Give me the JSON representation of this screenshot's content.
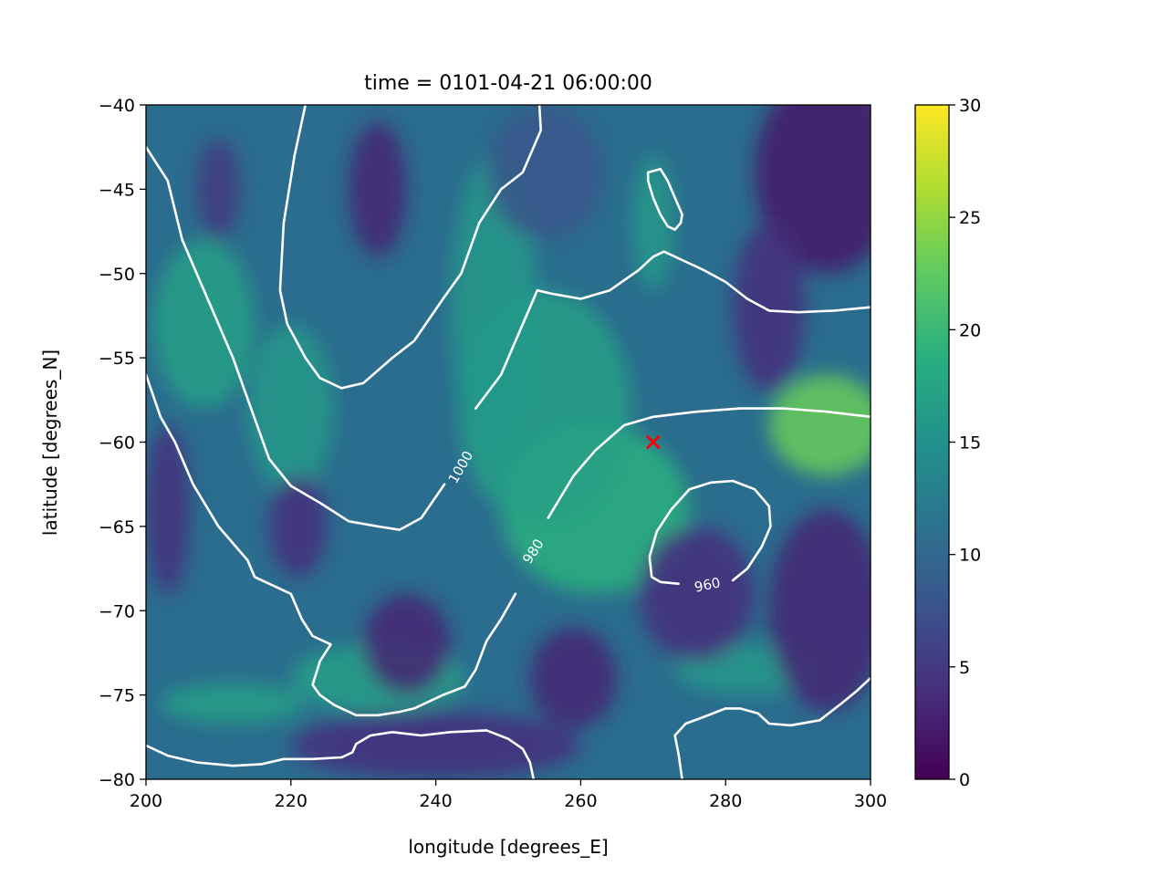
{
  "chart_data": {
    "type": "heatmap",
    "title": "time = 0101-04-21 06:00:00",
    "xlabel": "longitude [degrees_E]",
    "ylabel": "latitude [degrees_N]",
    "xlim": [
      200,
      300
    ],
    "ylim": [
      -80,
      -40
    ],
    "xticks": [
      200,
      220,
      240,
      260,
      280,
      300
    ],
    "xtick_labels": [
      "200",
      "220",
      "240",
      "260",
      "280",
      "300"
    ],
    "yticks": [
      -80,
      -75,
      -70,
      -65,
      -60,
      -55,
      -50,
      -45,
      -40
    ],
    "ytick_labels": [
      "−80",
      "−75",
      "−70",
      "−65",
      "−60",
      "−55",
      "−50",
      "−45",
      "−40"
    ],
    "colorbar": {
      "colormap": "viridis",
      "range": [
        0,
        30
      ],
      "ticks": [
        0,
        5,
        10,
        15,
        20,
        25,
        30
      ],
      "tick_labels": [
        "0",
        "5",
        "10",
        "15",
        "20",
        "25",
        "30"
      ]
    },
    "field_blobs": [
      {
        "lon": 294,
        "lat": -59,
        "value": 23,
        "rlon": 8,
        "rlat": 3
      },
      {
        "lon": 262,
        "lat": -64,
        "value": 19,
        "rlon": 13,
        "rlat": 5
      },
      {
        "lon": 255,
        "lat": -58,
        "value": 17,
        "rlon": 12,
        "rlat": 7
      },
      {
        "lon": 248,
        "lat": -52,
        "value": 16,
        "rlon": 6,
        "rlat": 9
      },
      {
        "lon": 270,
        "lat": -47,
        "value": 16,
        "rlon": 3,
        "rlat": 4
      },
      {
        "lon": 208,
        "lat": -53,
        "value": 17,
        "rlon": 7,
        "rlat": 5
      },
      {
        "lon": 220,
        "lat": -58,
        "value": 16,
        "rlon": 6,
        "rlat": 5
      },
      {
        "lon": 232,
        "lat": -74,
        "value": 17,
        "rlon": 12,
        "rlat": 2
      },
      {
        "lon": 212,
        "lat": -75.5,
        "value": 17,
        "rlon": 10,
        "rlat": 1.2
      },
      {
        "lon": 283,
        "lat": -73.5,
        "value": 16,
        "rlon": 10,
        "rlat": 1.5
      },
      {
        "lon": 232,
        "lat": -45,
        "value": 3,
        "rlon": 4,
        "rlat": 4
      },
      {
        "lon": 210,
        "lat": -45,
        "value": 5,
        "rlon": 3,
        "rlat": 3
      },
      {
        "lon": 294,
        "lat": -44,
        "value": 2,
        "rlon": 10,
        "rlat": 6
      },
      {
        "lon": 286,
        "lat": -52,
        "value": 4,
        "rlon": 5,
        "rlat": 5
      },
      {
        "lon": 294,
        "lat": -70,
        "value": 3,
        "rlon": 8,
        "rlat": 6
      },
      {
        "lon": 276,
        "lat": -69,
        "value": 4,
        "rlon": 8,
        "rlat": 4
      },
      {
        "lon": 236,
        "lat": -72,
        "value": 3,
        "rlon": 6,
        "rlat": 3
      },
      {
        "lon": 259,
        "lat": -74,
        "value": 3,
        "rlon": 6,
        "rlat": 3
      },
      {
        "lon": 221,
        "lat": -65,
        "value": 4,
        "rlon": 4,
        "rlat": 3
      },
      {
        "lon": 203,
        "lat": -64,
        "value": 4,
        "rlon": 3,
        "rlat": 5
      },
      {
        "lon": 255,
        "lat": -44,
        "value": 8,
        "rlon": 8,
        "rlat": 4
      },
      {
        "lon": 240,
        "lat": -78,
        "value": 4,
        "rlon": 20,
        "rlat": 2
      }
    ],
    "contours": [
      {
        "level": 1000,
        "label": "1000",
        "label_at": [
          243.5,
          -61.5
        ],
        "label_angle": -60,
        "points": [
          [
            245.5,
            -58
          ],
          [
            249,
            -56
          ],
          [
            252,
            -53
          ],
          [
            254,
            -51
          ],
          [
            256,
            -51.2
          ],
          [
            260,
            -51.5
          ],
          [
            264,
            -51
          ],
          [
            268,
            -49.8
          ],
          [
            270,
            -49
          ],
          [
            271.5,
            -48.7
          ],
          [
            274,
            -49.2
          ],
          [
            277,
            -49.8
          ],
          [
            280,
            -50.5
          ],
          [
            283,
            -51.5
          ],
          [
            286,
            -52.2
          ],
          [
            290,
            -52.3
          ],
          [
            295,
            -52.2
          ],
          [
            300,
            -52
          ]
        ]
      },
      {
        "level": 1000,
        "label": "",
        "points": [
          [
            241.2,
            -62.5
          ],
          [
            238,
            -64.5
          ],
          [
            235,
            -65.2
          ],
          [
            232,
            -65
          ],
          [
            228,
            -64.7
          ],
          [
            224,
            -63.6
          ],
          [
            220,
            -62.6
          ],
          [
            217,
            -61
          ],
          [
            214.5,
            -58
          ],
          [
            212,
            -55
          ],
          [
            209,
            -52
          ],
          [
            205,
            -48
          ],
          [
            203,
            -44.5
          ],
          [
            200,
            -42.5
          ]
        ]
      },
      {
        "level": 1000,
        "label": "",
        "points": [
          [
            222,
            -40
          ],
          [
            220.5,
            -43
          ],
          [
            219,
            -47
          ],
          [
            218.5,
            -51
          ],
          [
            219.5,
            -53
          ],
          [
            222,
            -55
          ],
          [
            224,
            -56.2
          ],
          [
            227,
            -56.8
          ],
          [
            230,
            -56.5
          ],
          [
            234,
            -55
          ],
          [
            237,
            -54
          ],
          [
            241,
            -51.5
          ],
          [
            243.5,
            -50
          ],
          [
            246,
            -47
          ],
          [
            249,
            -45
          ],
          [
            252,
            -44
          ],
          [
            254.5,
            -41.5
          ],
          [
            254.3,
            -40
          ]
        ]
      },
      {
        "level": 1000,
        "label": "",
        "points": [
          [
            269.3,
            -44
          ],
          [
            271,
            -43.8
          ],
          [
            272,
            -44.5
          ],
          [
            273,
            -45.5
          ],
          [
            274,
            -46.5
          ],
          [
            273.8,
            -47
          ],
          [
            273,
            -47.4
          ],
          [
            272,
            -47.2
          ],
          [
            271,
            -46.5
          ],
          [
            270,
            -45.5
          ],
          [
            269.3,
            -44.5
          ],
          [
            269.3,
            -44
          ]
        ]
      },
      {
        "level": 980,
        "label": "980",
        "label_at": [
          253.5,
          -66.5
        ],
        "label_angle": -57,
        "points": [
          [
            251,
            -69
          ],
          [
            249,
            -70.5
          ],
          [
            247,
            -71.8
          ],
          [
            245.5,
            -73.5
          ],
          [
            244,
            -74.5
          ],
          [
            241,
            -75
          ],
          [
            237,
            -75.8
          ],
          [
            235,
            -76
          ],
          [
            232,
            -76.2
          ],
          [
            229,
            -76.2
          ],
          [
            226,
            -75.6
          ],
          [
            224,
            -75
          ],
          [
            223,
            -74.4
          ],
          [
            224,
            -73
          ],
          [
            225.5,
            -72
          ],
          [
            223,
            -71.5
          ],
          [
            221.5,
            -70.5
          ],
          [
            220,
            -69
          ],
          [
            215,
            -68
          ],
          [
            214,
            -67
          ],
          [
            210,
            -65
          ],
          [
            206.5,
            -62.5
          ],
          [
            204,
            -60
          ],
          [
            202,
            -58.5
          ],
          [
            200,
            -56
          ]
        ]
      },
      {
        "level": 980,
        "label": "",
        "points": [
          [
            255.5,
            -64.5
          ],
          [
            259,
            -62
          ],
          [
            262,
            -60.5
          ],
          [
            266,
            -59
          ],
          [
            270,
            -58.5
          ],
          [
            276,
            -58.2
          ],
          [
            282,
            -58
          ],
          [
            288,
            -58
          ],
          [
            294,
            -58.2
          ],
          [
            300,
            -58.5
          ]
        ]
      },
      {
        "level": 980,
        "label": "",
        "points": [
          [
            200,
            -78
          ],
          [
            203,
            -78.6
          ],
          [
            207,
            -79
          ],
          [
            212,
            -79.2
          ],
          [
            216,
            -79.1
          ],
          [
            219,
            -78.8
          ],
          [
            223,
            -78.8
          ],
          [
            227,
            -78.7
          ],
          [
            228.5,
            -78.4
          ],
          [
            229,
            -77.9
          ],
          [
            231,
            -77.4
          ],
          [
            234,
            -77.2
          ],
          [
            238,
            -77.4
          ],
          [
            242,
            -77.2
          ],
          [
            247,
            -77.1
          ],
          [
            250,
            -77.6
          ],
          [
            252,
            -78.2
          ],
          [
            253,
            -79
          ],
          [
            253.5,
            -80
          ]
        ]
      },
      {
        "level": 980,
        "label": "",
        "points": [
          [
            274,
            -80
          ],
          [
            273.5,
            -78.5
          ],
          [
            273,
            -77.4
          ],
          [
            274.5,
            -76.7
          ],
          [
            277,
            -76.3
          ],
          [
            280,
            -75.8
          ],
          [
            282,
            -75.8
          ],
          [
            284.5,
            -76.1
          ],
          [
            286,
            -76.7
          ],
          [
            289,
            -76.8
          ],
          [
            293,
            -76.5
          ],
          [
            296,
            -75.5
          ],
          [
            298,
            -74.8
          ],
          [
            300,
            -74
          ]
        ]
      },
      {
        "level": 960,
        "label": "960",
        "label_at": [
          277.5,
          -68.5
        ],
        "label_angle": -12,
        "points": [
          [
            281,
            -68.2
          ],
          [
            283,
            -67.5
          ],
          [
            285,
            -66.2
          ],
          [
            286.2,
            -65
          ],
          [
            286,
            -63.8
          ],
          [
            284,
            -62.8
          ],
          [
            281,
            -62.3
          ],
          [
            278,
            -62.4
          ],
          [
            275,
            -62.8
          ],
          [
            272.5,
            -64
          ],
          [
            270.5,
            -65.3
          ],
          [
            269.5,
            -66.8
          ],
          [
            269.8,
            -68
          ],
          [
            271,
            -68.3
          ],
          [
            273.5,
            -68.4
          ]
        ]
      }
    ],
    "marker": {
      "lon": 270,
      "lat": -60,
      "symbol": "x",
      "color": "#ff0000"
    }
  }
}
